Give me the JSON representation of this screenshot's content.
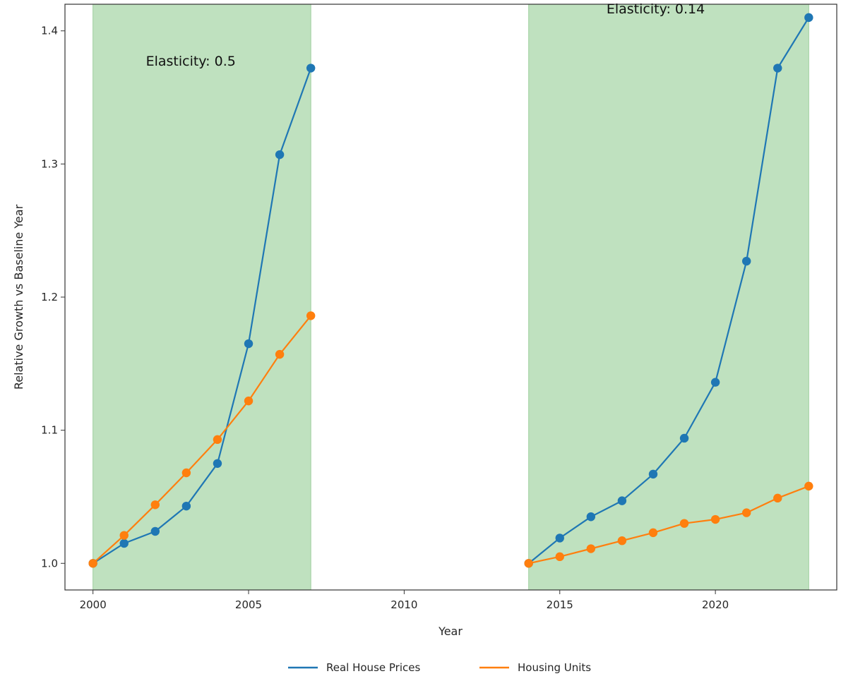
{
  "chart_data": {
    "type": "line",
    "title": "",
    "xlabel": "Year",
    "ylabel": "Relative Growth vs Baseline Year",
    "xlim": [
      1999.1,
      2023.9
    ],
    "ylim": [
      0.98,
      1.42
    ],
    "x_ticks": [
      2000,
      2005,
      2010,
      2015,
      2020
    ],
    "y_ticks": [
      1.0,
      1.1,
      1.2,
      1.3,
      1.4
    ],
    "grid": false,
    "legend_position": "bottom-center",
    "shaded_regions": [
      {
        "x_start": 2000,
        "x_end": 2007,
        "color": "#bfe1bf"
      },
      {
        "x_start": 2014,
        "x_end": 2023,
        "color": "#bfe1bf"
      }
    ],
    "annotations": [
      {
        "text": "Elasticity: 0.5",
        "x": 2001.7,
        "y": 1.374
      },
      {
        "text": "Elasticity: 0.14",
        "x": 2016.5,
        "y": 1.413
      }
    ],
    "series": [
      {
        "name": "Real House Prices",
        "color": "#1f77b4",
        "segments": [
          {
            "x": [
              2000,
              2001,
              2002,
              2003,
              2004,
              2005,
              2006,
              2007
            ],
            "y": [
              1.0,
              1.015,
              1.024,
              1.043,
              1.075,
              1.165,
              1.307,
              1.372
            ]
          },
          {
            "x": [
              2014,
              2015,
              2016,
              2017,
              2018,
              2019,
              2020,
              2021,
              2022,
              2023
            ],
            "y": [
              1.0,
              1.019,
              1.035,
              1.047,
              1.067,
              1.094,
              1.136,
              1.227,
              1.372,
              1.41
            ]
          }
        ]
      },
      {
        "name": "Housing Units",
        "color": "#ff7f0e",
        "segments": [
          {
            "x": [
              2000,
              2001,
              2002,
              2003,
              2004,
              2005,
              2006,
              2007
            ],
            "y": [
              1.0,
              1.021,
              1.044,
              1.068,
              1.093,
              1.122,
              1.157,
              1.186
            ]
          },
          {
            "x": [
              2014,
              2015,
              2016,
              2017,
              2018,
              2019,
              2020,
              2021,
              2022,
              2023
            ],
            "y": [
              1.0,
              1.005,
              1.011,
              1.017,
              1.023,
              1.03,
              1.033,
              1.038,
              1.049,
              1.058
            ]
          }
        ]
      }
    ]
  }
}
